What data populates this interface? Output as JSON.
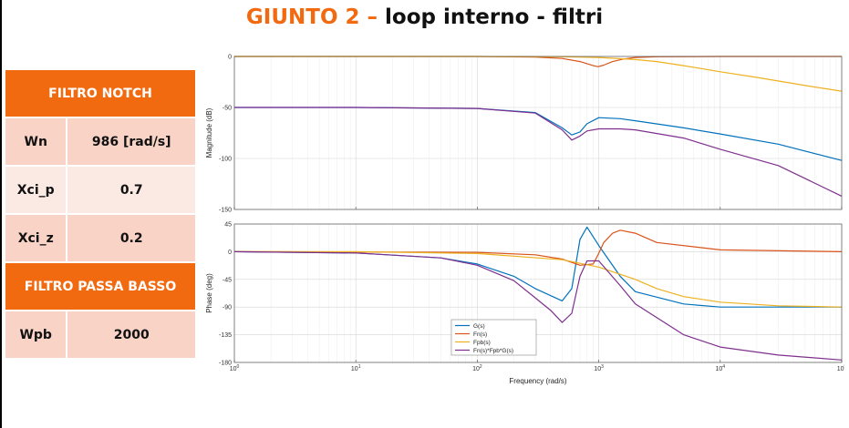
{
  "title": {
    "accent": "GIUNTO 2 –",
    "rest": "loop interno - filtri"
  },
  "colors": {
    "accent": "#f26a10",
    "row_dark": "#f8d3c6",
    "row_light": "#fbe9e3",
    "G": "#0072bd",
    "Fn": "#d95319",
    "Fpb": "#edb120",
    "Total": "#7e2f8e"
  },
  "table": {
    "notch_header": "FILTRO NOTCH",
    "rows": [
      {
        "label": "Wn",
        "value": "986 [rad/s]"
      },
      {
        "label": "Xci_p",
        "value": "0.7"
      },
      {
        "label": "Xci_z",
        "value": "0.2"
      }
    ],
    "lowpass_header": "FILTRO PASSA BASSO",
    "lowpass_rows": [
      {
        "label": "Wpb",
        "value": "2000"
      }
    ]
  },
  "chart_data": {
    "type": "line",
    "xlabel": "Frequency  (rad/s)",
    "xscale": "log",
    "xlim": [
      1,
      100000
    ],
    "legend_position": "bottom-center",
    "grid": true,
    "panels": [
      {
        "name": "magnitude",
        "ylabel": "Magnitude (dB)",
        "ylim": [
          -150,
          0
        ],
        "yticks": [
          "0",
          "-50",
          "-100",
          "-150"
        ],
        "series": [
          {
            "name": "G(s)",
            "x": [
              1,
              10,
              100,
              300,
              500,
              600,
              700,
              800,
              1000,
              1500,
              2000,
              5000,
              10000,
              30000,
              100000
            ],
            "y": [
              -50,
              -50,
              -51,
              -55,
              -70,
              -77,
              -74,
              -66,
              -60,
              -61,
              -63,
              -70,
              -76,
              -86,
              -102
            ]
          },
          {
            "name": "Fn(s)",
            "x": [
              1,
              10,
              100,
              300,
              500,
              700,
              900,
              986,
              1100,
              1300,
              1600,
              2000,
              3000,
              10000,
              100000
            ],
            "y": [
              0,
              0,
              0,
              -0.5,
              -2,
              -5,
              -9,
              -10,
              -8.5,
              -5,
              -2.5,
              -1,
              -0.3,
              0,
              0
            ]
          },
          {
            "name": "Fpb(s)",
            "x": [
              1,
              10,
              100,
              500,
              1000,
              2000,
              3000,
              5000,
              10000,
              20000,
              50000,
              100000
            ],
            "y": [
              0,
              0,
              0,
              -0.3,
              -1,
              -3,
              -5,
              -9,
              -15,
              -20.5,
              -28.5,
              -34
            ]
          },
          {
            "name": "Fn(s)*Fpb*G(s)",
            "x": [
              1,
              10,
              100,
              300,
              500,
              600,
              700,
              800,
              1000,
              1500,
              2000,
              5000,
              10000,
              30000,
              100000
            ],
            "y": [
              -50,
              -50,
              -51,
              -55.5,
              -72,
              -82,
              -78,
              -73,
              -71,
              -71,
              -72,
              -80,
              -91,
              -107,
              -137
            ]
          }
        ]
      },
      {
        "name": "phase",
        "ylabel": "Phase (deg)",
        "ylim": [
          -180,
          45
        ],
        "yticks": [
          "45",
          "0",
          "-45",
          "-90",
          "-135",
          "-180"
        ],
        "series": [
          {
            "name": "G(s)",
            "x": [
              1,
              10,
              50,
              100,
              200,
              300,
              500,
              600,
              700,
              800,
              1000,
              1500,
              2000,
              5000,
              10000,
              100000
            ],
            "y": [
              0,
              -2,
              -10,
              -20,
              -40,
              -60,
              -80,
              -60,
              20,
              40,
              10,
              -40,
              -65,
              -85,
              -90,
              -90
            ]
          },
          {
            "name": "Fn(s)",
            "x": [
              1,
              100,
              300,
              500,
              700,
              900,
              986,
              1100,
              1300,
              1500,
              2000,
              3000,
              10000,
              100000
            ],
            "y": [
              0,
              -1,
              -5,
              -12,
              -22,
              -20,
              -5,
              15,
              30,
              35,
              30,
              15,
              3,
              0
            ]
          },
          {
            "name": "Fpb(s)",
            "x": [
              1,
              10,
              100,
              500,
              1000,
              2000,
              3000,
              5000,
              10000,
              30000,
              100000
            ],
            "y": [
              0,
              0,
              -3,
              -13,
              -25,
              -45,
              -60,
              -73,
              -82,
              -88,
              -90
            ]
          },
          {
            "name": "Fn(s)*Fpb*G(s)",
            "x": [
              1,
              10,
              50,
              100,
              200,
              300,
              400,
              500,
              600,
              700,
              800,
              1000,
              1500,
              2000,
              5000,
              10000,
              30000,
              100000
            ],
            "y": [
              0,
              -2,
              -10,
              -22,
              -47,
              -75,
              -95,
              -115,
              -100,
              -40,
              -15,
              -15,
              -55,
              -85,
              -135,
              -155,
              -168,
              -176
            ]
          }
        ]
      }
    ]
  }
}
